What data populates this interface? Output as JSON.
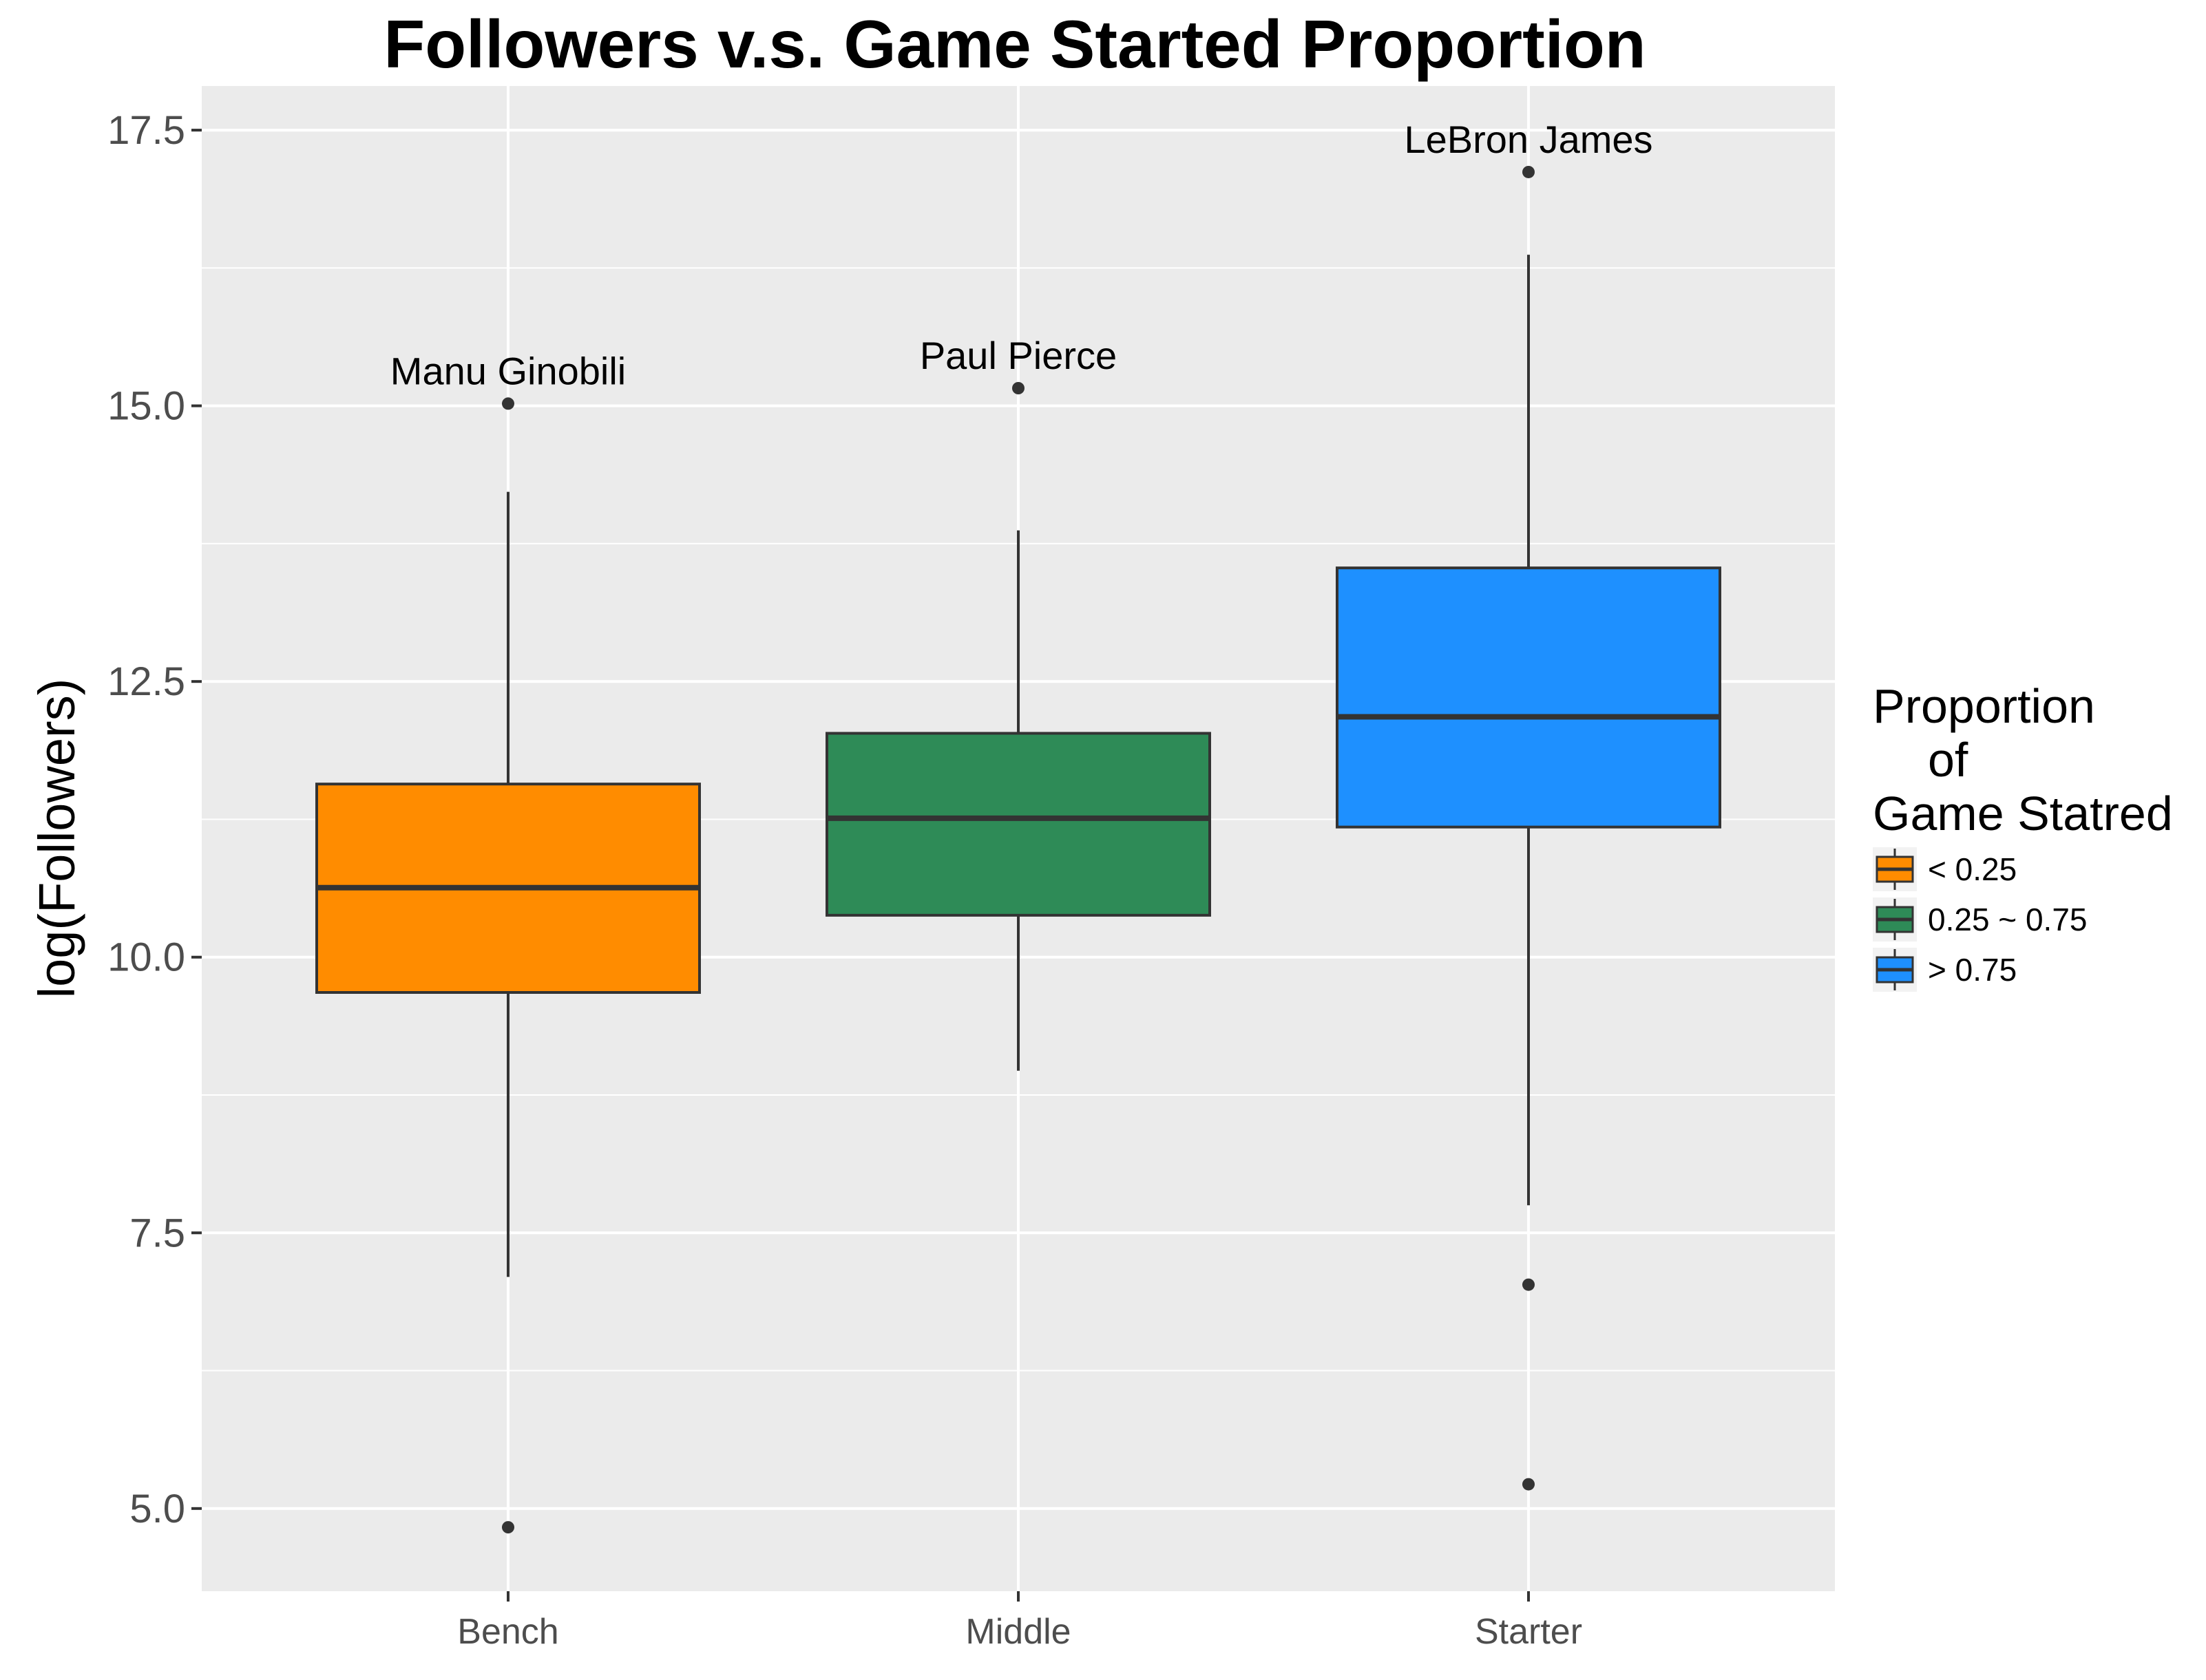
{
  "chart_data": {
    "type": "boxplot",
    "title": "Followers v.s. Game Started Proportion",
    "xlabel": "",
    "ylabel": "log(Followers)",
    "ylim": [
      4.25,
      17.9
    ],
    "y_ticks": [
      "5.0",
      "7.5",
      "10.0",
      "12.5",
      "15.0",
      "17.5"
    ],
    "grid": true,
    "legend_position": "right",
    "legend_title": [
      "Proportion",
      "of",
      "Game Statred"
    ],
    "categories": [
      "Bench",
      "Middle",
      "Starter"
    ],
    "boxes": [
      {
        "category": "Bench",
        "legend_label": "< 0.25",
        "color": "#FF8C00",
        "whisker_low": 7.1,
        "q1": 9.68,
        "median": 10.63,
        "q3": 11.57,
        "whisker_high": 14.22,
        "outliers": [
          15.02,
          4.83
        ],
        "annotation": "Manu Ginobili",
        "annotated_value": 15.02
      },
      {
        "category": "Middle",
        "legend_label": "0.25 ~ 0.75",
        "color": "#2E8B57",
        "whisker_low": 8.97,
        "q1": 10.38,
        "median": 11.26,
        "q3": 12.03,
        "whisker_high": 13.87,
        "outliers": [
          15.16
        ],
        "annotation": "Paul Pierce",
        "annotated_value": 15.16
      },
      {
        "category": "Starter",
        "legend_label": "> 0.75",
        "color": "#1E90FF",
        "whisker_low": 7.75,
        "q1": 11.18,
        "median": 12.18,
        "q3": 13.53,
        "whisker_high": 16.37,
        "outliers": [
          17.12,
          7.03,
          5.22
        ],
        "annotation": "LeBron James",
        "annotated_value": 17.12
      }
    ]
  }
}
